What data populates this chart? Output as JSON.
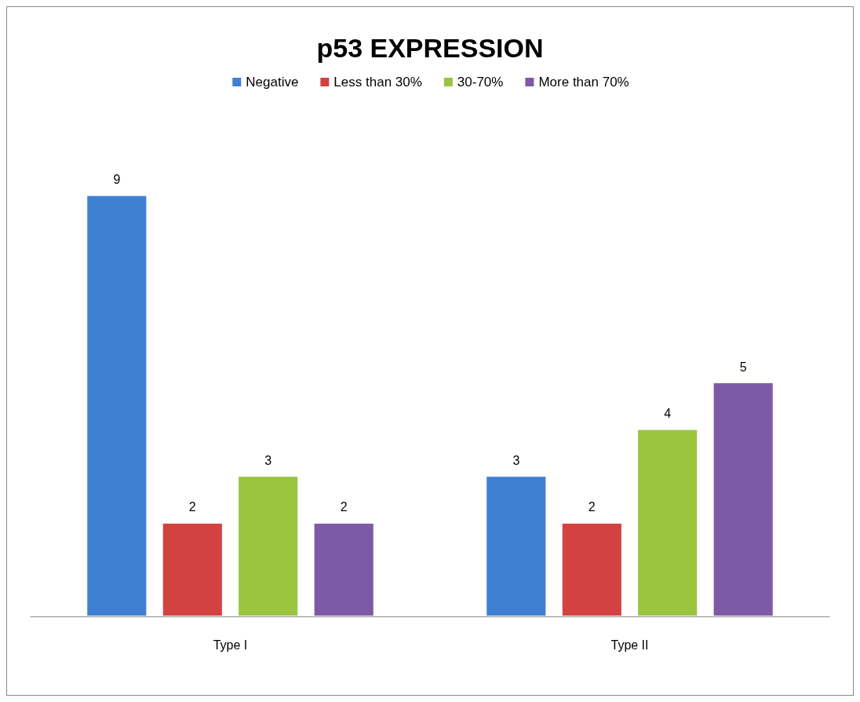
{
  "chart_data": {
    "type": "bar",
    "title": "p53 EXPRESSION",
    "categories": [
      "Type I",
      "Type II"
    ],
    "series": [
      {
        "name": "Negative",
        "color": "#3f80d2",
        "values": [
          9,
          3
        ]
      },
      {
        "name": "Less than 30%",
        "color": "#d24240",
        "values": [
          2,
          2
        ]
      },
      {
        "name": "30-70%",
        "color": "#9bc43e",
        "values": [
          3,
          4
        ]
      },
      {
        "name": "More than 70%",
        "color": "#7e5aa6",
        "values": [
          2,
          5
        ]
      }
    ],
    "data_labels": true,
    "legend": "top",
    "grid": false
  }
}
